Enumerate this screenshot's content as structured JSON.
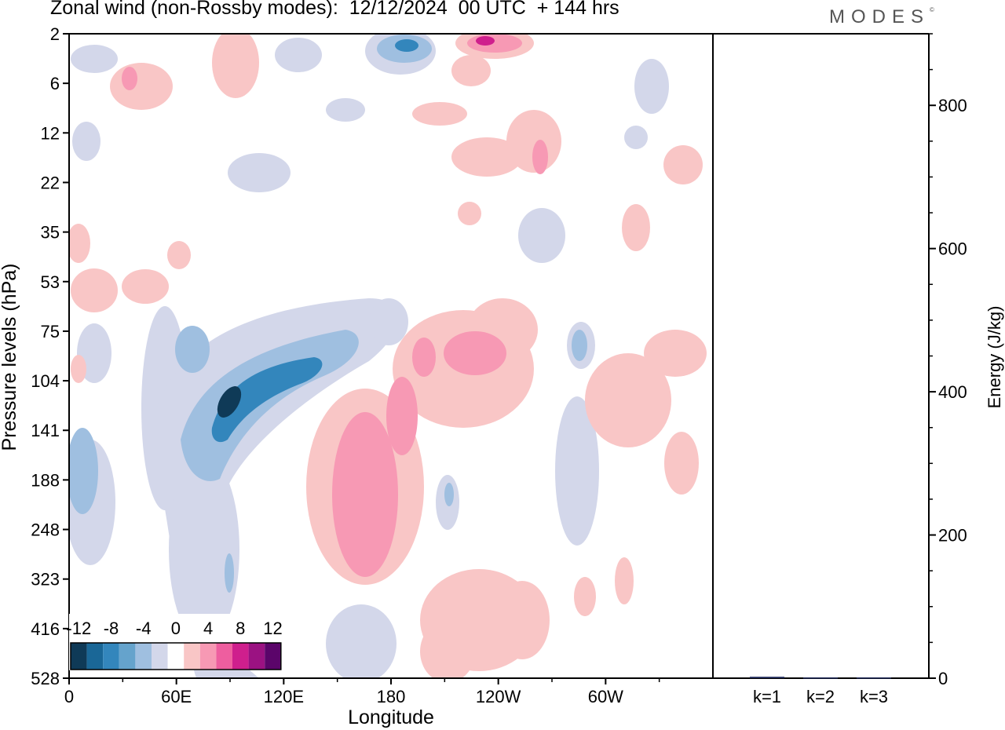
{
  "header": {
    "title": "Zonal wind (non-Rossby modes):  12/12/2024  00 UTC  + 144 hrs",
    "logo": "MODES",
    "logo_mark": "©"
  },
  "chart_data": [
    {
      "type": "heatmap",
      "title": "Zonal wind (non-Rossby modes):  12/12/2024  00 UTC  + 144 hrs",
      "xlabel": "Longitude",
      "ylabel": "Pressure levels (hPa)",
      "x_ticks": [
        "0",
        "60E",
        "120E",
        "180",
        "120W",
        "60W"
      ],
      "x_tick_degrees": [
        0,
        60,
        120,
        180,
        240,
        300
      ],
      "xlim": [
        0,
        360
      ],
      "y_ticks": [
        "2",
        "6",
        "12",
        "22",
        "35",
        "53",
        "75",
        "104",
        "141",
        "188",
        "248",
        "323",
        "416",
        "528"
      ],
      "y_axis": "top-to-bottom increasing pressure levels",
      "colorbar": {
        "labels": [
          "-12",
          "-8",
          "-4",
          "0",
          "4",
          "8",
          "12"
        ],
        "levels": [
          -14,
          -12,
          -10,
          -8,
          -6,
          -4,
          -2,
          2,
          4,
          6,
          8,
          10,
          12,
          14
        ],
        "colors": [
          "#0f3a57",
          "#1a6797",
          "#3386bc",
          "#65a3cc",
          "#9fbfe0",
          "#d3d7ea",
          "#ffffff",
          "#f9c6c6",
          "#f799b4",
          "#ee5e9f",
          "#cf1f8d",
          "#9b1282",
          "#5b056a"
        ],
        "position": "bottom-left"
      },
      "features": [
        {
          "sign": "negative",
          "peak": -12,
          "lon": 90,
          "level": "104-141 hPa"
        },
        {
          "sign": "positive",
          "peak": 8,
          "lon": 165,
          "level": "141-323 hPa"
        },
        {
          "sign": "positive",
          "peak": 10,
          "lon": 230,
          "level": "2 hPa"
        }
      ]
    },
    {
      "type": "bar",
      "categories": [
        "k=1",
        "k=2",
        "k=3"
      ],
      "values": [
        2,
        1,
        1
      ],
      "ylabel": "Energy (J/kg)",
      "ylim": [
        0,
        900
      ],
      "y_ticks": [
        "0",
        "200",
        "400",
        "600",
        "800"
      ]
    }
  ],
  "colors": {
    "neg_light": "#d3d7ea",
    "neg_mid": "#9fbfe0",
    "neg_strong": "#3386bc",
    "neg_peak": "#0f3a57",
    "pos_light": "#f9c6c6",
    "pos_mid": "#f799b4",
    "pos_strong": "#ee5e9f",
    "pos_peak": "#cf1f8d",
    "bar": "#1f2a5a"
  }
}
